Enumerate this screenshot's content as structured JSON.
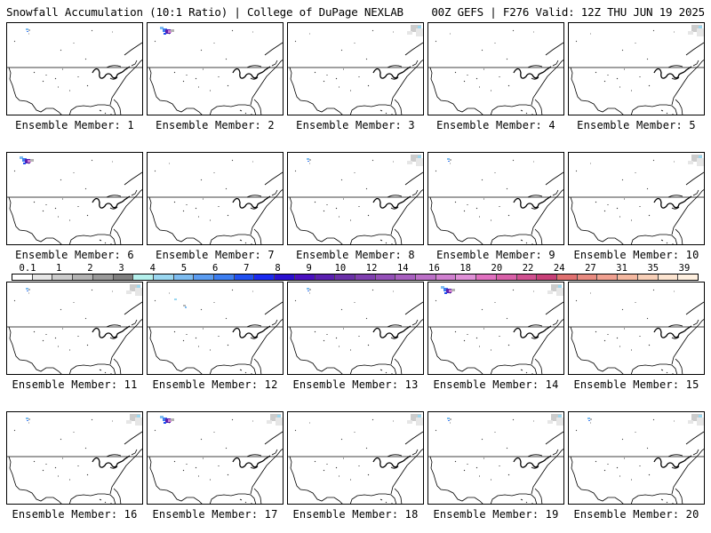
{
  "header": {
    "left": "Snowfall Accumulation (10:1 Ratio) | College of DuPage NEXLAB",
    "right": "00Z GEFS | F276 Valid: 12Z THU JUN 19 2025"
  },
  "colorbar": {
    "labels": [
      "0.1",
      "1",
      "2",
      "3",
      "4",
      "5",
      "6",
      "7",
      "8",
      "9",
      "10",
      "12",
      "14",
      "16",
      "18",
      "20",
      "22",
      "24",
      "27",
      "31",
      "35",
      "39"
    ],
    "colors": [
      "#ffffff",
      "#e6e6e6",
      "#cccccc",
      "#b3b3b3",
      "#999999",
      "#7f7f7f",
      "#b4f0ec",
      "#9ad7f0",
      "#7dbcf0",
      "#5b9cf0",
      "#3d7ef0",
      "#2050f0",
      "#1a2af0",
      "#2a10d0",
      "#4a10c0",
      "#5a20b0",
      "#6a30a8",
      "#8040b0",
      "#9450b8",
      "#a860c0",
      "#bc70c8",
      "#d080d0",
      "#e090d8",
      "#e070c0",
      "#d860a8",
      "#d05090",
      "#c84078",
      "#e07070",
      "#e88a80",
      "#f0a090",
      "#f4b8a0",
      "#f8d0b8",
      "#fce4d0",
      "#fff0e0"
    ]
  },
  "members": [
    {
      "label": "Ensemble Member: 1",
      "snow": [
        "nw-light"
      ]
    },
    {
      "label": "Ensemble Member: 2",
      "snow": [
        "nw-heavy"
      ]
    },
    {
      "label": "Ensemble Member: 3",
      "snow": [
        "ne-gray"
      ]
    },
    {
      "label": "Ensemble Member: 4",
      "snow": []
    },
    {
      "label": "Ensemble Member: 5",
      "snow": [
        "ne-gray"
      ]
    },
    {
      "label": "Ensemble Member: 6",
      "snow": [
        "nw-heavy"
      ]
    },
    {
      "label": "Ensemble Member: 7",
      "snow": []
    },
    {
      "label": "Ensemble Member: 8",
      "snow": [
        "nw-light",
        "ne-gray"
      ]
    },
    {
      "label": "Ensemble Member: 9",
      "snow": [
        "nw-light"
      ]
    },
    {
      "label": "Ensemble Member: 10",
      "snow": [
        "ne-gray"
      ]
    },
    {
      "label": "Ensemble Member: 11",
      "snow": [
        "nw-light",
        "ne-gray"
      ]
    },
    {
      "label": "Ensemble Member: 12",
      "snow": [
        "mid-light"
      ]
    },
    {
      "label": "Ensemble Member: 13",
      "snow": [
        "nw-light"
      ]
    },
    {
      "label": "Ensemble Member: 14",
      "snow": [
        "nw-heavy",
        "ne-gray"
      ]
    },
    {
      "label": "Ensemble Member: 15",
      "snow": []
    },
    {
      "label": "Ensemble Member: 16",
      "snow": [
        "nw-light",
        "ne-gray"
      ]
    },
    {
      "label": "Ensemble Member: 17",
      "snow": [
        "nw-heavy",
        "ne-gray"
      ]
    },
    {
      "label": "Ensemble Member: 18",
      "snow": [
        "ne-gray"
      ]
    },
    {
      "label": "Ensemble Member: 19",
      "snow": [
        "nw-light",
        "ne-gray"
      ]
    },
    {
      "label": "Ensemble Member: 20",
      "snow": [
        "nw-light",
        "ne-gray"
      ]
    }
  ]
}
